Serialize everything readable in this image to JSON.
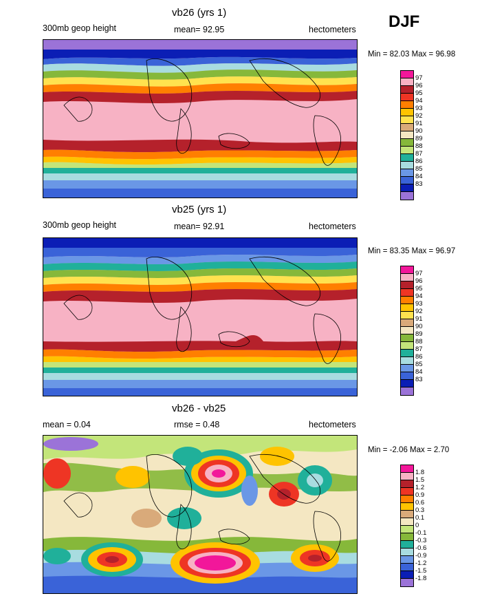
{
  "season": "DJF",
  "panels": [
    {
      "title": "vb26 (yrs 1)",
      "variable": "300mb geop height",
      "mean_label": "mean=  92.95",
      "units": "hectometers",
      "minmax": "Min =  82.03 Max =  96.98",
      "levels": [
        "97",
        "96",
        "95",
        "94",
        "93",
        "92",
        "91",
        "90",
        "89",
        "88",
        "87",
        "86",
        "85",
        "84",
        "83"
      ],
      "colors": [
        "#f2179a",
        "#f7b2c4",
        "#b5212b",
        "#ee3524",
        "#ff7f00",
        "#ffc300",
        "#ffe24f",
        "#d9aa7a",
        "#f4e7c2",
        "#86b83a",
        "#c3e57a",
        "#20b09a",
        "#a8dce0",
        "#6a97e6",
        "#3a63d8",
        "#0b1eb5",
        "#9b73d8"
      ]
    },
    {
      "title": "vb25 (yrs 1)",
      "variable": "300mb geop height",
      "mean_label": "mean=  92.91",
      "units": "hectometers",
      "minmax": "Min =  83.35 Max =  96.97",
      "levels": [
        "97",
        "96",
        "95",
        "94",
        "93",
        "92",
        "91",
        "90",
        "89",
        "88",
        "87",
        "86",
        "85",
        "84",
        "83"
      ],
      "colors": [
        "#f2179a",
        "#f7b2c4",
        "#b5212b",
        "#ee3524",
        "#ff7f00",
        "#ffc300",
        "#ffe24f",
        "#d9aa7a",
        "#f4e7c2",
        "#86b83a",
        "#c3e57a",
        "#20b09a",
        "#a8dce0",
        "#6a97e6",
        "#3a63d8",
        "#0b1eb5",
        "#9b73d8"
      ]
    },
    {
      "title": "vb26 - vb25",
      "mean_label": "mean =   0.04",
      "rmse_label": "rmse =   0.48",
      "units": "hectometers",
      "minmax": "Min =  -2.06 Max =   2.70",
      "levels": [
        "1.8",
        "1.5",
        "1.2",
        "0.9",
        "0.6",
        "0.3",
        "0.1",
        "0",
        "-0.1",
        "-0.3",
        "-0.6",
        "-0.9",
        "-1.2",
        "-1.5",
        "-1.8"
      ],
      "colors": [
        "#f2179a",
        "#f7b2c4",
        "#b5212b",
        "#ee3524",
        "#ff7f00",
        "#ffc300",
        "#d9aa7a",
        "#f4e7c2",
        "#c3e57a",
        "#86b83a",
        "#20b09a",
        "#a8dce0",
        "#6a97e6",
        "#3a63d8",
        "#0b1eb5",
        "#9b73d8"
      ]
    }
  ]
}
